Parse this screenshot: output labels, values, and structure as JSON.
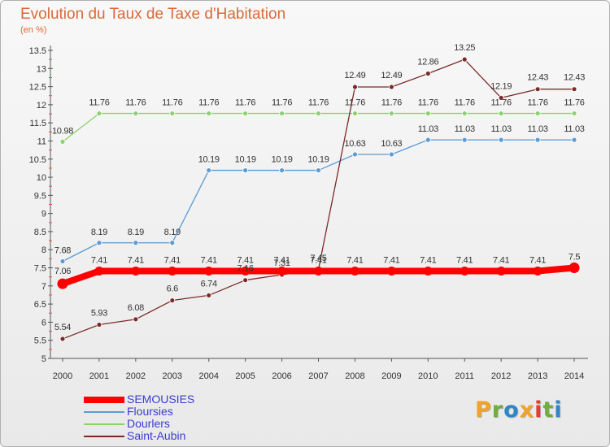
{
  "title": "Evolution du Taux de Taxe d'Habitation",
  "subtitle": "(en %)",
  "brand": {
    "name": "Proxiti",
    "colors": [
      "#f0a22b",
      "#6fae3c",
      "#2e86c9",
      "#f0a22b",
      "#e63c2f",
      "#6fae3c",
      "#2e86c9"
    ]
  },
  "chart_data": {
    "type": "line",
    "x": [
      "2000",
      "2001",
      "2002",
      "2003",
      "2004",
      "2005",
      "2006",
      "2007",
      "2008",
      "2009",
      "2010",
      "2011",
      "2012",
      "2013",
      "2014"
    ],
    "y_ticks": [
      "5",
      "5.5",
      "6",
      "6.5",
      "7",
      "7.5",
      "8",
      "8.5",
      "9",
      "9.5",
      "10",
      "10.5",
      "11",
      "11.5",
      "12",
      "12.5",
      "13",
      "13.5"
    ],
    "ylim": [
      5,
      13.5
    ],
    "grid": false,
    "legend_position": "bottom-left",
    "series": [
      {
        "name": "SEMOUSIES",
        "color": "#ff0000",
        "values": [
          7.06,
          7.41,
          7.41,
          7.41,
          7.41,
          7.41,
          7.41,
          7.41,
          7.41,
          7.41,
          7.41,
          7.41,
          7.41,
          7.41,
          7.5
        ],
        "labels": [
          "7.06",
          "7.41",
          "7.41",
          "7.41",
          "7.41",
          "7.41",
          "7.41",
          "7.41",
          "7.41",
          "7.41",
          "7.41",
          "7.41",
          "7.41",
          "7.41",
          "7.5"
        ]
      },
      {
        "name": "Floursies",
        "color": "#5b9bd5",
        "values": [
          7.68,
          8.19,
          8.19,
          8.19,
          10.19,
          10.19,
          10.19,
          10.19,
          10.63,
          10.63,
          11.03,
          11.03,
          11.03,
          11.03,
          11.03
        ],
        "labels": [
          "7.68",
          "8.19",
          "8.19",
          "8.19",
          "10.19",
          "10.19",
          "10.19",
          "10.19",
          "10.63",
          "10.63",
          "11.03",
          "11.03",
          "11.03",
          "11.03",
          "11.03"
        ]
      },
      {
        "name": "Dourlers",
        "color": "#8cd16b",
        "values": [
          10.98,
          11.76,
          11.76,
          11.76,
          11.76,
          11.76,
          11.76,
          11.76,
          11.76,
          11.76,
          11.76,
          11.76,
          11.76,
          11.76,
          11.76
        ],
        "labels": [
          "10.98",
          "11.76",
          "11.76",
          "11.76",
          "11.76",
          "11.76",
          "11.76",
          "11.76",
          "11.76",
          "11.76",
          "11.76",
          "11.76",
          "11.76",
          "11.76",
          "11.76"
        ]
      },
      {
        "name": "Saint-Aubin",
        "color": "#7b2a2a",
        "values": [
          5.54,
          5.93,
          6.08,
          6.6,
          6.74,
          7.16,
          7.31,
          7.45,
          12.49,
          12.49,
          12.86,
          13.25,
          12.19,
          12.43,
          12.43
        ],
        "labels": [
          "5.54",
          "5.93",
          "6.08",
          "6.6",
          "6.74",
          "7.16",
          "7.31",
          "7.45",
          "12.49",
          "12.49",
          "12.86",
          "13.25",
          "12.19",
          "12.43",
          "12.43"
        ]
      }
    ]
  }
}
